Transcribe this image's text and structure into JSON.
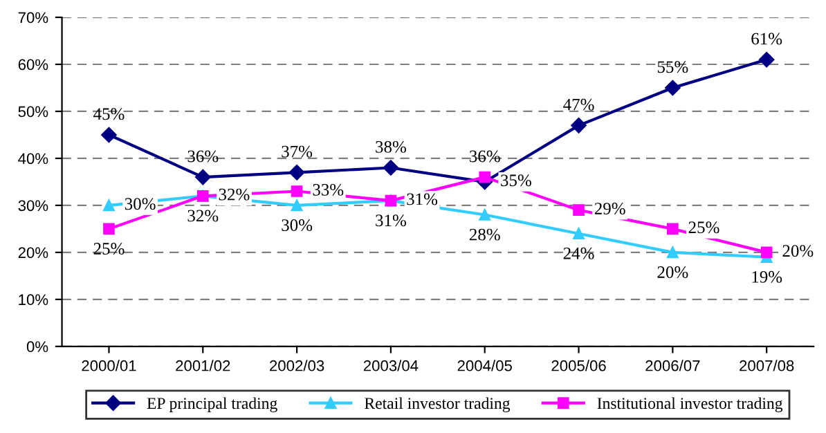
{
  "chart_data": {
    "type": "line",
    "categories": [
      "2000/01",
      "2001/02",
      "2002/03",
      "2003/04",
      "2004/05",
      "2005/06",
      "2006/07",
      "2007/08"
    ],
    "series": [
      {
        "name": "EP principal trading",
        "color": "#000080",
        "marker": "diamond",
        "values": [
          45,
          36,
          37,
          38,
          35,
          47,
          55,
          61
        ],
        "value_labels": [
          "45%",
          "36%",
          "37%",
          "38%",
          "35%",
          "47%",
          "55%",
          "61%"
        ]
      },
      {
        "name": "Retail investor trading",
        "color": "#33ccff",
        "marker": "triangle",
        "values": [
          30,
          32,
          30,
          31,
          28,
          24,
          20,
          19
        ],
        "value_labels": [
          "30%",
          "32%",
          "30%",
          "31%",
          "28%",
          "24%",
          "20%",
          "19%"
        ]
      },
      {
        "name": "Institutional investor trading",
        "color": "#ff00ff",
        "marker": "square",
        "values": [
          25,
          32,
          33,
          31,
          36,
          29,
          25,
          20
        ],
        "value_labels": [
          "25%",
          "32%",
          "33%",
          "31%",
          "36%",
          "29%",
          "25%",
          "20%"
        ]
      }
    ],
    "ylim": [
      0,
      70
    ],
    "yticks": [
      {
        "value": 0,
        "label": "0%"
      },
      {
        "value": 10,
        "label": "10%"
      },
      {
        "value": 20,
        "label": "20%"
      },
      {
        "value": 30,
        "label": "30%"
      },
      {
        "value": 40,
        "label": "40%"
      },
      {
        "value": 50,
        "label": "50%"
      },
      {
        "value": 60,
        "label": "60%"
      },
      {
        "value": 70,
        "label": "70%"
      }
    ],
    "grid": "y",
    "legend": "bottom",
    "line_style": "solid"
  }
}
